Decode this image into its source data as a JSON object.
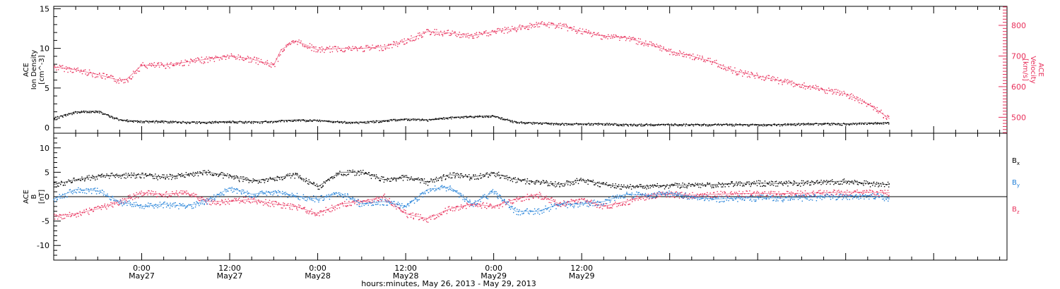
{
  "chart_data": [
    {
      "type": "scatter",
      "panel": "top",
      "ylabel_left": [
        "ACE",
        "Ion Density",
        "[cm^-3]"
      ],
      "ylabel_right": [
        "ACE",
        "Velocity",
        "[km/s]"
      ],
      "y_left_ticks": [
        "0",
        "5",
        "10",
        "15"
      ],
      "y_right_ticks": [
        "500",
        "600",
        "700",
        "800"
      ],
      "ylim_left": [
        -0.7,
        15.3
      ],
      "ylim_right": [
        448,
        862
      ],
      "series": [
        {
          "axis": "left",
          "color": "#000000",
          "x_hours": [
            0,
            3,
            6,
            9,
            12,
            15,
            18,
            21,
            24,
            27,
            30,
            33,
            36,
            40,
            42,
            45,
            48,
            51,
            54,
            57,
            60,
            63,
            66,
            69,
            72,
            75,
            78,
            81,
            84,
            87,
            90,
            93,
            96,
            99,
            102,
            105,
            108,
            111,
            114
          ],
          "values": [
            1.2,
            2.0,
            2.1,
            1.0,
            0.8,
            0.8,
            0.7,
            0.7,
            0.8,
            0.7,
            0.8,
            1.0,
            0.9,
            0.7,
            0.7,
            0.9,
            1.1,
            1.0,
            1.3,
            1.4,
            1.5,
            0.7,
            0.6,
            0.5,
            0.5,
            0.5,
            0.4,
            0.4,
            0.4,
            0.4,
            0.4,
            0.4,
            0.4,
            0.4,
            0.5,
            0.5,
            0.5,
            0.6,
            0.6
          ]
        },
        {
          "axis": "right",
          "color": "#e8305b",
          "x_hours": [
            0,
            3,
            6,
            9,
            10,
            12,
            15,
            18,
            21,
            24,
            27,
            30,
            31,
            33,
            36,
            39,
            42,
            45,
            48,
            51,
            54,
            57,
            60,
            63,
            66,
            69,
            72,
            75,
            78,
            81,
            84,
            87,
            90,
            93,
            96,
            99,
            102,
            105,
            108,
            111,
            114
          ],
          "values": [
            665,
            655,
            640,
            620,
            625,
            670,
            670,
            680,
            690,
            700,
            690,
            670,
            720,
            750,
            720,
            725,
            725,
            730,
            750,
            780,
            775,
            765,
            780,
            790,
            805,
            800,
            780,
            765,
            760,
            740,
            715,
            700,
            680,
            650,
            635,
            620,
            605,
            590,
            575,
            545,
            495
          ]
        }
      ]
    },
    {
      "type": "scatter",
      "panel": "bottom",
      "ylabel": [
        "ACE",
        "B",
        "[nT]"
      ],
      "y_ticks": [
        "-10",
        "-5",
        "0",
        "5",
        "10"
      ],
      "ylim": [
        -13,
        13
      ],
      "series": [
        {
          "name": "B_x",
          "label_main": "B",
          "label_sub": "x",
          "color": "#000000",
          "x_hours": [
            0,
            3,
            6,
            9,
            12,
            15,
            18,
            21,
            24,
            27,
            30,
            33,
            36,
            39,
            42,
            45,
            48,
            51,
            54,
            57,
            60,
            63,
            66,
            69,
            72,
            75,
            78,
            81,
            84,
            87,
            90,
            93,
            96,
            99,
            102,
            105,
            108,
            111,
            114
          ],
          "values": [
            2.5,
            3.5,
            4.2,
            4.4,
            4.5,
            4.0,
            4.5,
            5.0,
            4.2,
            3.2,
            3.8,
            4.5,
            2.0,
            5.0,
            5.0,
            3.5,
            4.0,
            3.0,
            4.5,
            4.0,
            4.8,
            3.5,
            3.0,
            2.5,
            3.5,
            2.5,
            2.0,
            2.2,
            2.3,
            2.4,
            2.5,
            2.7,
            2.8,
            2.7,
            2.8,
            3.0,
            3.2,
            2.7,
            2.5
          ]
        },
        {
          "name": "B_y",
          "label_main": "B",
          "label_sub": "y",
          "color": "#1f7fd8",
          "x_hours": [
            0,
            3,
            6,
            9,
            12,
            15,
            18,
            21,
            24,
            27,
            30,
            33,
            36,
            39,
            42,
            45,
            48,
            51,
            54,
            57,
            60,
            63,
            66,
            69,
            72,
            75,
            78,
            81,
            84,
            87,
            90,
            93,
            96,
            99,
            102,
            105,
            108,
            111,
            114
          ],
          "values": [
            -0.5,
            1.5,
            1.2,
            -1.0,
            -2.0,
            -1.5,
            -2.0,
            -0.8,
            1.8,
            0.5,
            1.0,
            0.2,
            -0.5,
            0.8,
            -1.5,
            -1.0,
            -2.0,
            1.5,
            2.0,
            -1.5,
            1.0,
            -3.0,
            -3.0,
            -1.5,
            -1.5,
            -1.0,
            0.5,
            0.3,
            0.8,
            0.0,
            -0.5,
            -0.3,
            -0.2,
            -0.3,
            -0.2,
            0.0,
            0.1,
            0.2,
            -0.2
          ]
        },
        {
          "name": "B_z",
          "label_main": "B",
          "label_sub": "z",
          "color": "#e8305b",
          "x_hours": [
            0,
            3,
            6,
            9,
            12,
            15,
            18,
            21,
            24,
            27,
            30,
            33,
            36,
            39,
            42,
            45,
            48,
            51,
            54,
            57,
            60,
            63,
            66,
            69,
            72,
            75,
            78,
            81,
            84,
            87,
            90,
            93,
            96,
            99,
            102,
            105,
            108,
            111,
            114
          ],
          "values": [
            -4.0,
            -3.5,
            -2.5,
            -1.0,
            0.8,
            0.5,
            0.8,
            -1.0,
            -1.0,
            -0.5,
            -1.5,
            -2.0,
            -3.5,
            -1.5,
            -1.0,
            0.0,
            -3.5,
            -4.5,
            -2.5,
            -1.5,
            -2.0,
            -0.5,
            0.5,
            -1.5,
            -0.5,
            -2.0,
            -1.0,
            0.2,
            0.5,
            0.3,
            0.5,
            0.6,
            0.7,
            0.6,
            0.7,
            0.8,
            0.9,
            0.9,
            0.8
          ]
        }
      ]
    }
  ],
  "x_axis": {
    "xlim_hours": [
      0,
      130
    ],
    "major_ticks": [
      {
        "hour": 12,
        "time": "0:00",
        "day": "May27"
      },
      {
        "hour": 24,
        "time": "12:00",
        "day": "May27"
      },
      {
        "hour": 36,
        "time": "0:00",
        "day": "May28"
      },
      {
        "hour": 48,
        "time": "12:00",
        "day": "May28"
      },
      {
        "hour": 60,
        "time": "0:00",
        "day": "May29"
      },
      {
        "hour": 72,
        "time": "12:00",
        "day": "May29"
      }
    ],
    "xlabel": "hours:minutes, May 26, 2013 - May 29, 2013"
  }
}
